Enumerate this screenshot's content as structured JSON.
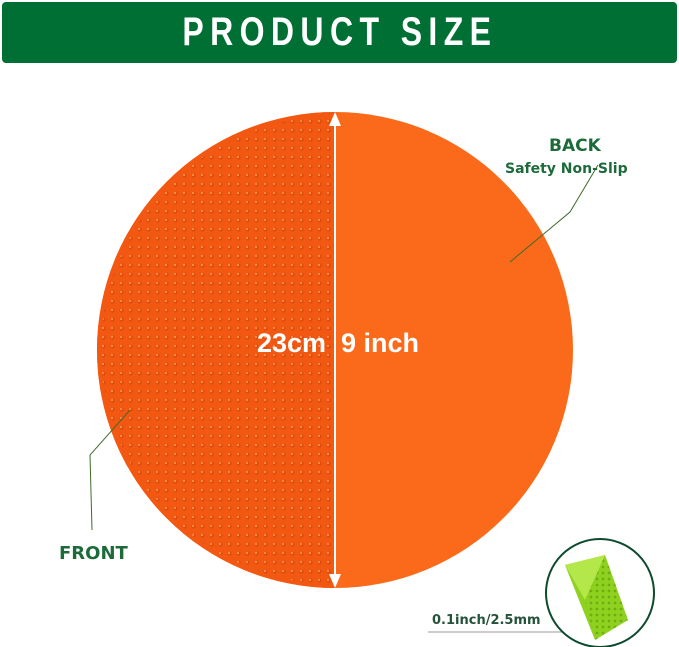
{
  "banner": {
    "title": "PRODUCT SIZE"
  },
  "labels": {
    "back": "BACK",
    "back_sub": "Safety Non-Slip",
    "front": "FRONT",
    "diameter_cm": "23cm",
    "diameter_inch": "9 inch",
    "thickness": "0.1inch/2.5mm"
  },
  "colors": {
    "brand_green": "#006f33",
    "disc_orange": "#fb6a1a",
    "disc_dark": "#f25812",
    "label_green": "#1d6b3a",
    "inset_green": "#8fd11f"
  }
}
